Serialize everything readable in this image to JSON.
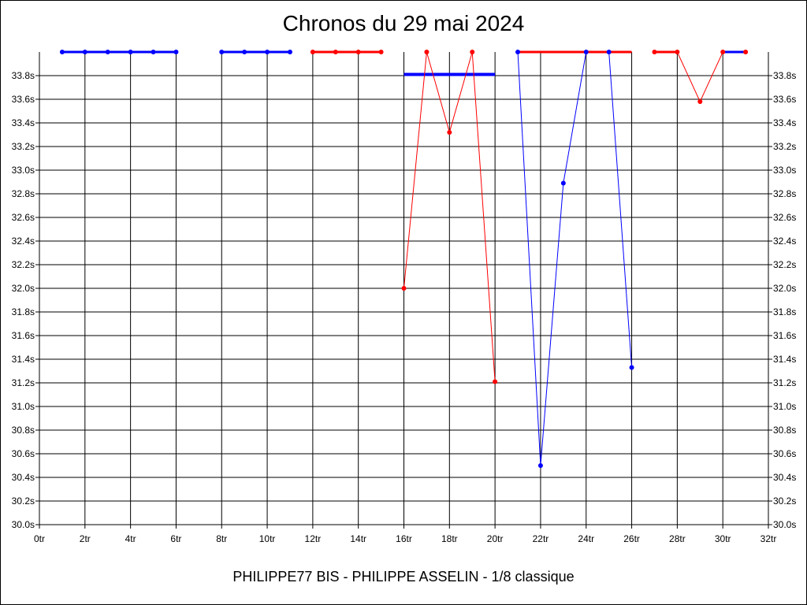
{
  "title": "Chronos du 29 mai 2024",
  "footer": "PHILIPPE77 BIS - PHILIPPE ASSELIN - 1/8 classique",
  "colors": {
    "red": "#ff0000",
    "blue": "#0000ff",
    "grid": "#000000",
    "axis": "#000000"
  },
  "chart_data": {
    "type": "line",
    "title": "Chronos du 29 mai 2024",
    "xlabel": "",
    "ylabel": "",
    "xlim": [
      0,
      32
    ],
    "ylim": [
      30.0,
      34.0
    ],
    "x_ticks": [
      "0tr",
      "2tr",
      "4tr",
      "6tr",
      "8tr",
      "10tr",
      "12tr",
      "14tr",
      "16tr",
      "18tr",
      "20tr",
      "22tr",
      "24tr",
      "26tr",
      "28tr",
      "30tr",
      "32tr"
    ],
    "y_ticks": [
      "30.0s",
      "30.2s",
      "30.4s",
      "30.6s",
      "30.8s",
      "31.0s",
      "31.2s",
      "31.4s",
      "31.6s",
      "31.8s",
      "32.0s",
      "32.2s",
      "32.4s",
      "32.6s",
      "32.8s",
      "33.0s",
      "33.2s",
      "33.4s",
      "33.6s",
      "33.8s"
    ],
    "grid": true,
    "y_axis_both_sides": true,
    "top_band_value": 34.0,
    "series": [
      {
        "color": "blue",
        "x": [
          1,
          2,
          3,
          4,
          5,
          6
        ],
        "y": [
          34.0,
          34.0,
          34.0,
          34.0,
          34.0,
          34.0
        ]
      },
      {
        "color": "blue",
        "x": [
          8,
          9,
          10,
          11
        ],
        "y": [
          34.0,
          34.0,
          34.0,
          34.0
        ]
      },
      {
        "color": "red",
        "x": [
          12,
          13,
          14,
          15
        ],
        "y": [
          34.0,
          34.0,
          34.0,
          34.0
        ]
      },
      {
        "color": "red",
        "x": [
          16,
          17,
          18,
          19,
          20
        ],
        "y": [
          32.0,
          34.0,
          33.32,
          34.0,
          31.21
        ]
      },
      {
        "color": "blue",
        "x": [
          21,
          22,
          23,
          24,
          25,
          26
        ],
        "y": [
          34.0,
          30.5,
          32.89,
          34.0,
          34.0,
          31.33
        ]
      },
      {
        "color": "red",
        "x": [
          27,
          28,
          29,
          30,
          31
        ],
        "y": [
          34.0,
          34.0,
          33.58,
          34.0,
          34.0
        ]
      }
    ],
    "flat_segments": [
      {
        "color": "red",
        "x": [
          12,
          13,
          14,
          15
        ]
      },
      {
        "color": "red",
        "x": [
          21,
          26
        ]
      },
      {
        "color": "red",
        "x": [
          27,
          28
        ]
      },
      {
        "color": "blue",
        "x": [
          30,
          31
        ]
      }
    ],
    "reference_lines": [
      {
        "color": "blue",
        "x": [
          16,
          20
        ],
        "y": 33.81
      }
    ]
  }
}
